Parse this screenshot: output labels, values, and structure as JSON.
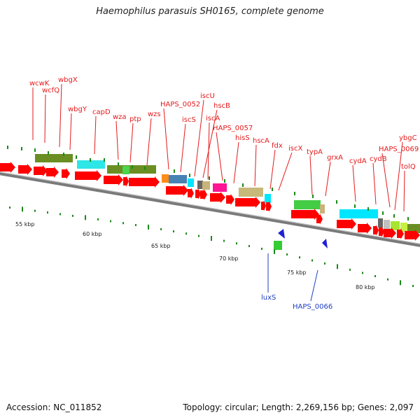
{
  "title": "Haemophilus parasuis SH0165, complete genome",
  "footer": {
    "accession": "Accession: NC_011852",
    "topology": "Topology: circular; Length: 2,269,156 bp; Genes: 2,097"
  },
  "scale_labels": [
    "55 kbp",
    "60 kbp",
    "65 kbp",
    "70 kbp",
    "75 kbp",
    "80 kbp"
  ],
  "top_labels": [
    "wcwK",
    "wcfQ",
    "wbgX",
    "wbgY",
    "capD",
    "wza",
    "ptp",
    "wzs",
    "HAPS_0052",
    "iscS",
    "iscU",
    "hscB",
    "iscA",
    "HAPS_0057",
    "hisS",
    "hscA",
    "fdx",
    "iscX",
    "typA",
    "grxA",
    "cydA",
    "cydB",
    "HAPS_0069",
    "ybgC",
    "tolQ"
  ],
  "bottom_labels": [
    "luxS",
    "HAPS_0066"
  ],
  "colors": {
    "gene": "#ff0000",
    "label_top": "#e41a1c",
    "label_bottom": "#1f3fc4",
    "backbone": "#888888",
    "tick": "#1a8a1a"
  }
}
